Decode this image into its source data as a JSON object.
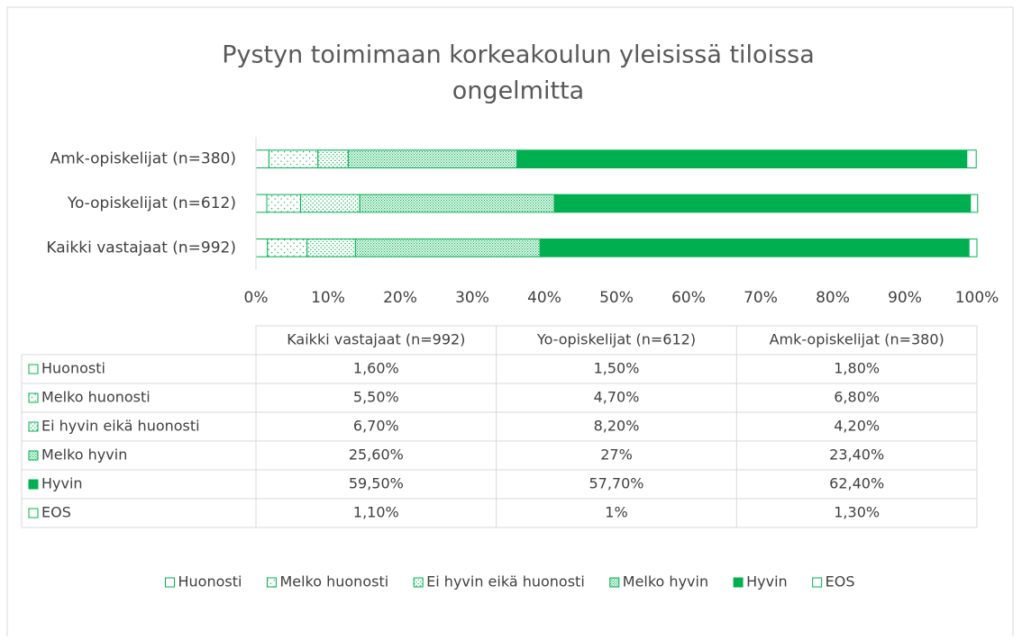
{
  "chart_data": {
    "type": "stacked-barh",
    "title": [
      "Pystyn toimimaan korkeakoulun yleisissä tiloissa",
      "ongelmitta"
    ],
    "categories": [
      "Kaikki vastajaat (n=992)",
      "Yo-opiskelijat (n=612)",
      "Amk-opiskelijat (n=380)"
    ],
    "series": [
      {
        "name": "Huonosti",
        "color": "#00b050",
        "pattern": "outline",
        "values": [
          1.6,
          1.5,
          1.8
        ],
        "value_labels": [
          "1,60%",
          "1,50%",
          "1,80%"
        ]
      },
      {
        "name": "Melko huonosti",
        "color": "#00b050",
        "pattern": "sparse",
        "values": [
          5.5,
          4.7,
          6.8
        ],
        "value_labels": [
          "5,50%",
          "4,70%",
          "6,80%"
        ]
      },
      {
        "name": "Ei hyvin eikä huonosti",
        "color": "#00b050",
        "pattern": "medium",
        "values": [
          6.7,
          8.2,
          4.2
        ],
        "value_labels": [
          "6,70%",
          "8,20%",
          "4,20%"
        ]
      },
      {
        "name": "Melko hyvin",
        "color": "#00b050",
        "pattern": "dense",
        "values": [
          25.6,
          27,
          23.4
        ],
        "value_labels": [
          "25,60%",
          "27%",
          "23,40%"
        ]
      },
      {
        "name": "Hyvin",
        "color": "#00b050",
        "pattern": "solid",
        "values": [
          59.5,
          57.7,
          62.4
        ],
        "value_labels": [
          "59,50%",
          "57,70%",
          "62,40%"
        ]
      },
      {
        "name": "EOS",
        "color": "#00b050",
        "pattern": "outline",
        "values": [
          1.1,
          1,
          1.3
        ],
        "value_labels": [
          "1,10%",
          "1%",
          "1,30%"
        ]
      }
    ],
    "xlim": [
      0,
      100
    ],
    "xticks": [
      {
        "value": 0,
        "label": "0%"
      },
      {
        "value": 10,
        "label": "10%"
      },
      {
        "value": 20,
        "label": "20%"
      },
      {
        "value": 30,
        "label": "30%"
      },
      {
        "value": 40,
        "label": "40%"
      },
      {
        "value": 50,
        "label": "50%"
      },
      {
        "value": 60,
        "label": "60%"
      },
      {
        "value": 70,
        "label": "70%"
      },
      {
        "value": 80,
        "label": "80%"
      },
      {
        "value": 90,
        "label": "90%"
      },
      {
        "value": 100,
        "label": "100%"
      }
    ],
    "data_table": true,
    "legend": "bottom"
  }
}
